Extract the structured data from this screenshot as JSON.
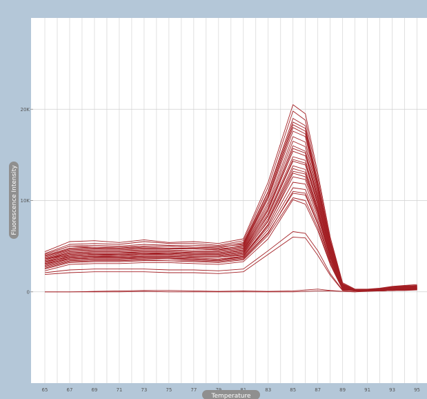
{
  "chart_data": {
    "type": "line",
    "title": "",
    "xlabel": "Temperature",
    "ylabel": "Fluorescence Intensity",
    "xlim": [
      65,
      95
    ],
    "ylim": [
      -10000,
      30000
    ],
    "x_ticks": [
      65,
      67,
      69,
      71,
      73,
      75,
      77,
      79,
      81,
      83,
      85,
      87,
      89,
      91,
      93,
      95
    ],
    "x_tick_labels": [
      "65",
      "67",
      "69",
      "71",
      "73",
      "75",
      "77",
      "79",
      "81",
      "83",
      "85",
      "87",
      "89",
      "91",
      "93",
      "95"
    ],
    "y_ticks": [
      0,
      10000,
      20000
    ],
    "y_tick_labels": [
      "0",
      "10K",
      "20K"
    ],
    "grid": true,
    "legend": "none",
    "line_color": "#a31f24",
    "frame_color": "#b4c7d8",
    "pill_color": "#8f8f8f",
    "x": [
      65,
      67,
      69,
      71,
      73,
      75,
      77,
      79,
      81,
      83,
      85,
      86,
      87,
      88,
      89,
      90,
      91,
      92,
      93,
      94,
      95
    ],
    "series": [
      {
        "values": [
          4400,
          5500,
          5600,
          5400,
          5700,
          5400,
          5500,
          5300,
          5800,
          12000,
          20500,
          19500,
          13000,
          6000,
          1000,
          300,
          300,
          400,
          600,
          700,
          800
        ]
      },
      {
        "values": [
          4200,
          5200,
          5300,
          5200,
          5500,
          5300,
          5300,
          5100,
          5600,
          11500,
          19800,
          18800,
          12500,
          5700,
          900,
          250,
          250,
          350,
          550,
          650,
          700
        ]
      },
      {
        "values": [
          4100,
          5000,
          5100,
          5000,
          5200,
          5100,
          5100,
          5000,
          5400,
          11000,
          19000,
          18200,
          12000,
          5500,
          850,
          200,
          200,
          300,
          500,
          600,
          650
        ]
      },
      {
        "values": [
          4000,
          4800,
          4900,
          4900,
          5000,
          5000,
          4900,
          4900,
          5200,
          10600,
          18300,
          17600,
          11700,
          5300,
          800,
          200,
          200,
          300,
          450,
          550,
          600
        ]
      },
      {
        "values": [
          3900,
          4600,
          4700,
          4700,
          4900,
          4800,
          4800,
          4700,
          5000,
          10200,
          17600,
          17000,
          11300,
          5100,
          750,
          150,
          150,
          250,
          400,
          500,
          600
        ]
      },
      {
        "values": [
          3800,
          4500,
          4600,
          4600,
          4700,
          4700,
          4700,
          4600,
          4900,
          9800,
          17000,
          16400,
          11000,
          5000,
          700,
          150,
          150,
          250,
          400,
          500,
          550
        ]
      },
      {
        "values": [
          3700,
          4400,
          4500,
          4500,
          4600,
          4600,
          4500,
          4500,
          4800,
          9500,
          16500,
          15900,
          10700,
          4800,
          650,
          100,
          150,
          200,
          350,
          450,
          500
        ]
      },
      {
        "values": [
          3600,
          4300,
          4400,
          4400,
          4500,
          4500,
          4400,
          4400,
          4700,
          9200,
          16000,
          15400,
          10400,
          4700,
          600,
          100,
          100,
          200,
          350,
          450,
          500
        ]
      },
      {
        "values": [
          3500,
          4200,
          4300,
          4300,
          4400,
          4400,
          4300,
          4300,
          4600,
          8900,
          15400,
          14900,
          10100,
          4500,
          600,
          100,
          100,
          200,
          300,
          400,
          450
        ]
      },
      {
        "values": [
          3400,
          4100,
          4200,
          4200,
          4300,
          4300,
          4200,
          4200,
          4500,
          8600,
          14800,
          14400,
          9800,
          4400,
          550,
          100,
          100,
          150,
          300,
          400,
          450
        ]
      },
      {
        "values": [
          3300,
          4000,
          4100,
          4100,
          4200,
          4200,
          4100,
          4100,
          4400,
          8300,
          14300,
          13900,
          9500,
          4300,
          500,
          100,
          100,
          150,
          250,
          350,
          400
        ]
      },
      {
        "values": [
          3200,
          3900,
          4000,
          4000,
          4100,
          4100,
          4000,
          4000,
          4300,
          8000,
          13800,
          13400,
          9200,
          4100,
          500,
          100,
          100,
          150,
          250,
          350,
          400
        ]
      },
      {
        "values": [
          3100,
          3800,
          3900,
          3900,
          4000,
          4000,
          3900,
          3900,
          4200,
          7700,
          13200,
          12900,
          8900,
          4000,
          450,
          100,
          100,
          150,
          250,
          300,
          350
        ]
      },
      {
        "values": [
          3000,
          3700,
          3800,
          3800,
          3900,
          3900,
          3800,
          3800,
          4000,
          7400,
          12600,
          12300,
          8500,
          3800,
          400,
          100,
          100,
          100,
          200,
          300,
          350
        ]
      },
      {
        "values": [
          2900,
          3600,
          3700,
          3700,
          3800,
          3800,
          3700,
          3600,
          3900,
          7100,
          12000,
          11800,
          8200,
          3700,
          400,
          100,
          100,
          100,
          200,
          300,
          300
        ]
      },
      {
        "values": [
          2800,
          3500,
          3600,
          3600,
          3700,
          3700,
          3600,
          3500,
          3800,
          6800,
          11400,
          11200,
          7800,
          3500,
          350,
          100,
          100,
          100,
          200,
          250,
          300
        ]
      },
      {
        "values": [
          2700,
          3400,
          3500,
          3500,
          3600,
          3600,
          3500,
          3400,
          3700,
          6500,
          10800,
          10600,
          7400,
          3300,
          300,
          100,
          100,
          100,
          150,
          250,
          300
        ]
      },
      {
        "values": [
          2500,
          3200,
          3300,
          3300,
          3400,
          3400,
          3300,
          3200,
          3500,
          6200,
          10300,
          10000,
          7000,
          3100,
          300,
          100,
          100,
          100,
          150,
          200,
          250
        ]
      },
      {
        "values": [
          2300,
          3000,
          3100,
          3100,
          3200,
          3200,
          3100,
          3000,
          3300,
          5800,
          10100,
          9600,
          6700,
          3000,
          250,
          100,
          100,
          100,
          150,
          200,
          250
        ]
      },
      {
        "values": [
          3100,
          3600,
          3700,
          3700,
          3700,
          3600,
          3600,
          3500,
          3900,
          7300,
          13000,
          12600,
          8700,
          3900,
          450,
          100,
          100,
          150,
          250,
          350,
          400
        ]
      },
      {
        "values": [
          3600,
          4200,
          4300,
          4300,
          4300,
          4200,
          4300,
          4200,
          4500,
          9000,
          15700,
          15200,
          10200,
          4600,
          600,
          100,
          150,
          200,
          350,
          450,
          500
        ]
      },
      {
        "values": [
          3900,
          4700,
          4800,
          4700,
          4800,
          4800,
          4700,
          4600,
          5100,
          10400,
          18000,
          17300,
          11500,
          5200,
          750,
          150,
          150,
          250,
          400,
          550,
          600
        ]
      },
      {
        "values": [
          4100,
          5000,
          4900,
          4800,
          5000,
          5000,
          4900,
          4800,
          5300,
          10900,
          18600,
          17900,
          11900,
          5400,
          800,
          150,
          200,
          300,
          450,
          550,
          650
        ]
      },
      {
        "values": [
          3300,
          3800,
          3900,
          3800,
          3900,
          3900,
          3800,
          3800,
          4100,
          7800,
          13500,
          13100,
          9000,
          4000,
          450,
          100,
          100,
          150,
          250,
          350,
          400
        ]
      },
      {
        "values": [
          3600,
          4000,
          4100,
          4000,
          4200,
          4100,
          4000,
          4000,
          4300,
          8400,
          14500,
          14100,
          9700,
          4300,
          550,
          100,
          100,
          150,
          300,
          400,
          450
        ]
      },
      {
        "values": [
          2600,
          3300,
          3400,
          3400,
          3500,
          3400,
          3400,
          3300,
          3600,
          6400,
          11000,
          10800,
          7500,
          3400,
          300,
          100,
          100,
          100,
          200,
          250,
          300
        ]
      },
      {
        "values": [
          2100,
          2400,
          2500,
          2500,
          2500,
          2400,
          2400,
          2300,
          2500,
          4500,
          6600,
          6400,
          4500,
          2000,
          200,
          100,
          100,
          100,
          150,
          200,
          250
        ]
      },
      {
        "values": [
          1900,
          2100,
          2200,
          2200,
          2200,
          2100,
          2100,
          2000,
          2200,
          4100,
          6000,
          5900,
          4000,
          1800,
          150,
          100,
          100,
          100,
          150,
          150,
          200
        ]
      },
      {
        "values": [
          0,
          0,
          50,
          100,
          150,
          150,
          100,
          50,
          100,
          50,
          100,
          200,
          300,
          150,
          50,
          0,
          100,
          200,
          300,
          350,
          400
        ]
      },
      {
        "values": [
          0,
          0,
          0,
          0,
          50,
          0,
          0,
          0,
          0,
          0,
          0,
          50,
          100,
          100,
          50,
          0,
          50,
          100,
          150,
          200,
          250
        ]
      }
    ]
  }
}
